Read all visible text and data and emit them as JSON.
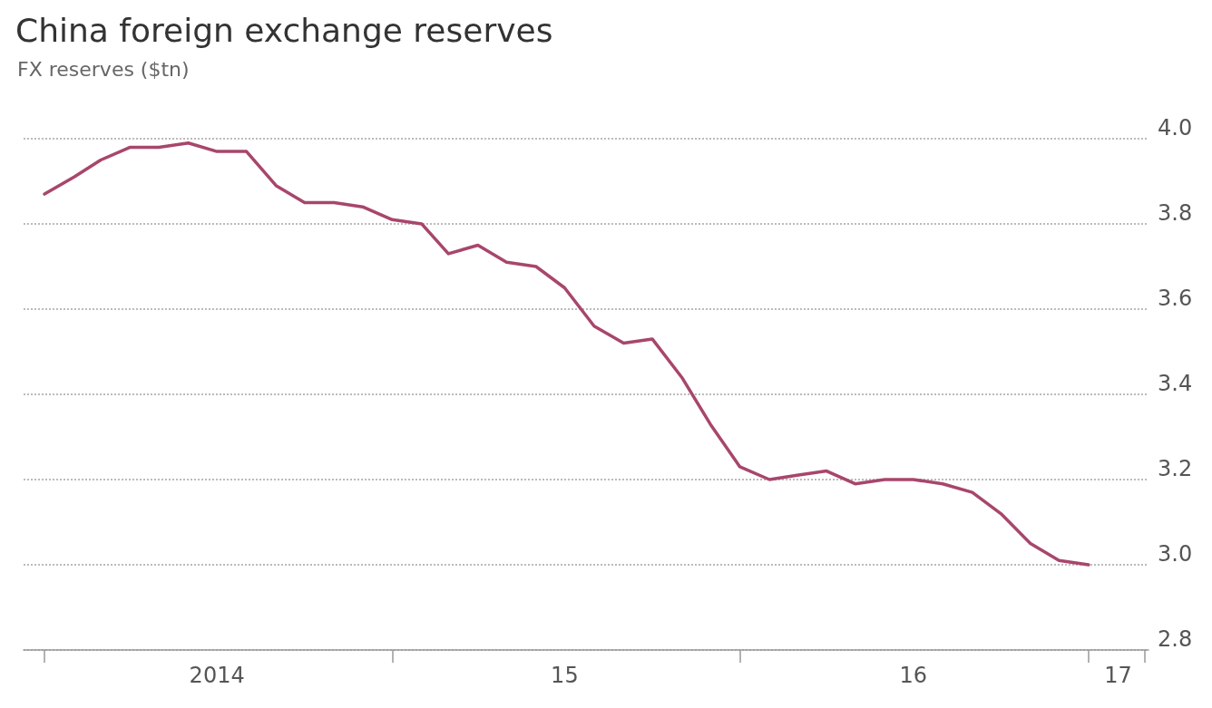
{
  "chart_data": {
    "type": "line",
    "title": "China foreign exchange reserves",
    "subtitle": "FX reserves ($tn)",
    "x": [
      "2014-01",
      "2014-02",
      "2014-03",
      "2014-04",
      "2014-05",
      "2014-06",
      "2014-07",
      "2014-08",
      "2014-09",
      "2014-10",
      "2014-11",
      "2014-12",
      "2015-01",
      "2015-02",
      "2015-03",
      "2015-04",
      "2015-05",
      "2015-06",
      "2015-07",
      "2015-08",
      "2015-09",
      "2015-10",
      "2015-11",
      "2015-12",
      "2016-01",
      "2016-02",
      "2016-03",
      "2016-04",
      "2016-05",
      "2016-06",
      "2016-07",
      "2016-08",
      "2016-09",
      "2016-10",
      "2016-11",
      "2016-12",
      "2017-01"
    ],
    "series": [
      {
        "color": "#a8466c",
        "values": [
          3.87,
          3.91,
          3.95,
          3.98,
          3.98,
          3.99,
          3.97,
          3.97,
          3.89,
          3.85,
          3.85,
          3.84,
          3.81,
          3.8,
          3.73,
          3.75,
          3.71,
          3.7,
          3.65,
          3.56,
          3.52,
          3.53,
          3.44,
          3.33,
          3.23,
          3.2,
          3.21,
          3.22,
          3.19,
          3.2,
          3.2,
          3.19,
          3.17,
          3.12,
          3.05,
          3.01,
          3.0
        ]
      }
    ],
    "xlim": [
      "2013-12-10",
      "2017-03-05"
    ],
    "xticks": [
      {
        "value": "2014-01-01",
        "label": null
      },
      {
        "value": "2014-07-01",
        "label": "2014"
      },
      {
        "value": "2015-01-01",
        "label": null
      },
      {
        "value": "2015-07-01",
        "label": "15"
      },
      {
        "value": "2016-01-01",
        "label": null
      },
      {
        "value": "2016-07-01",
        "label": "16"
      },
      {
        "value": "2017-01-01",
        "label": null
      },
      {
        "value": "2017-02-01",
        "label": "17"
      },
      {
        "value": "2017-03-01",
        "label": null
      }
    ],
    "ylim": [
      2.8,
      4.0
    ],
    "yticks": [
      {
        "value": 2.8,
        "label": "2.8"
      },
      {
        "value": 3.0,
        "label": "3.0"
      },
      {
        "value": 3.2,
        "label": "3.2"
      },
      {
        "value": 3.4,
        "label": "3.4"
      },
      {
        "value": 3.6,
        "label": "3.6"
      },
      {
        "value": 3.8,
        "label": "3.8"
      },
      {
        "value": 4.0,
        "label": "4.0"
      }
    ],
    "grid": "y",
    "marker": "none",
    "line_style": "solid"
  }
}
